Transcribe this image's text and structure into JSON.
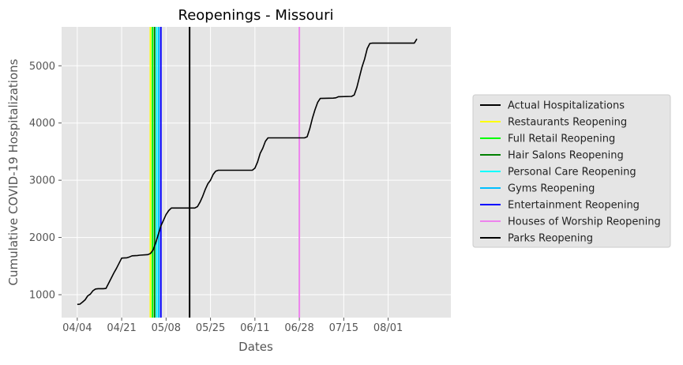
{
  "chart_data": {
    "type": "line",
    "title": "Reopenings - Missouri",
    "xlabel": "Dates",
    "ylabel": "Cumulative COVID-19 Hospitalizations",
    "grid": true,
    "legend_position": "right",
    "x_ticks": [
      {
        "label": "04/04",
        "date": "2020-04-04"
      },
      {
        "label": "04/21",
        "date": "2020-04-21"
      },
      {
        "label": "05/08",
        "date": "2020-05-08"
      },
      {
        "label": "05/25",
        "date": "2020-05-25"
      },
      {
        "label": "06/11",
        "date": "2020-06-11"
      },
      {
        "label": "06/28",
        "date": "2020-06-28"
      },
      {
        "label": "07/15",
        "date": "2020-07-15"
      },
      {
        "label": "08/01",
        "date": "2020-08-01"
      }
    ],
    "xlim": [
      "2020-03-29",
      "2020-08-25"
    ],
    "y_ticks": [
      1000,
      2000,
      3000,
      4000,
      5000
    ],
    "ylim": [
      600,
      5680
    ],
    "series": [
      {
        "name": "Actual Hospitalizations",
        "color": "#000000",
        "points": [
          [
            "2020-04-04",
            830
          ],
          [
            "2020-04-05",
            835
          ],
          [
            "2020-04-06",
            870
          ],
          [
            "2020-04-07",
            910
          ],
          [
            "2020-04-08",
            980
          ],
          [
            "2020-04-09",
            1010
          ],
          [
            "2020-04-10",
            1070
          ],
          [
            "2020-04-11",
            1100
          ],
          [
            "2020-04-12",
            1105
          ],
          [
            "2020-04-14",
            1105
          ],
          [
            "2020-04-15",
            1110
          ],
          [
            "2020-04-16",
            1200
          ],
          [
            "2020-04-17",
            1290
          ],
          [
            "2020-04-18",
            1380
          ],
          [
            "2020-04-19",
            1460
          ],
          [
            "2020-04-20",
            1550
          ],
          [
            "2020-04-21",
            1640
          ],
          [
            "2020-04-23",
            1645
          ],
          [
            "2020-04-24",
            1660
          ],
          [
            "2020-04-25",
            1680
          ],
          [
            "2020-04-27",
            1685
          ],
          [
            "2020-04-28",
            1690
          ],
          [
            "2020-05-01",
            1700
          ],
          [
            "2020-05-02",
            1720
          ],
          [
            "2020-05-03",
            1780
          ],
          [
            "2020-05-04",
            1900
          ],
          [
            "2020-05-05",
            2050
          ],
          [
            "2020-05-06",
            2200
          ],
          [
            "2020-05-07",
            2300
          ],
          [
            "2020-05-08",
            2400
          ],
          [
            "2020-05-09",
            2470
          ],
          [
            "2020-05-10",
            2515
          ],
          [
            "2020-05-19",
            2515
          ],
          [
            "2020-05-20",
            2540
          ],
          [
            "2020-05-21",
            2620
          ],
          [
            "2020-05-22",
            2720
          ],
          [
            "2020-05-23",
            2840
          ],
          [
            "2020-05-24",
            2940
          ],
          [
            "2020-05-25",
            3000
          ],
          [
            "2020-05-26",
            3100
          ],
          [
            "2020-05-27",
            3160
          ],
          [
            "2020-05-28",
            3175
          ],
          [
            "2020-06-10",
            3175
          ],
          [
            "2020-06-11",
            3210
          ],
          [
            "2020-06-12",
            3320
          ],
          [
            "2020-06-13",
            3470
          ],
          [
            "2020-06-14",
            3560
          ],
          [
            "2020-06-15",
            3680
          ],
          [
            "2020-06-16",
            3740
          ],
          [
            "2020-06-30",
            3740
          ],
          [
            "2020-07-01",
            3760
          ],
          [
            "2020-07-02",
            3900
          ],
          [
            "2020-07-03",
            4080
          ],
          [
            "2020-07-04",
            4230
          ],
          [
            "2020-07-05",
            4360
          ],
          [
            "2020-07-06",
            4430
          ],
          [
            "2020-07-11",
            4435
          ],
          [
            "2020-07-12",
            4440
          ],
          [
            "2020-07-13",
            4460
          ],
          [
            "2020-07-18",
            4465
          ],
          [
            "2020-07-19",
            4490
          ],
          [
            "2020-07-20",
            4620
          ],
          [
            "2020-07-21",
            4800
          ],
          [
            "2020-07-22",
            4980
          ],
          [
            "2020-07-23",
            5120
          ],
          [
            "2020-07-24",
            5300
          ],
          [
            "2020-07-25",
            5390
          ],
          [
            "2020-07-26",
            5395
          ],
          [
            "2020-08-11",
            5395
          ],
          [
            "2020-08-12",
            5470
          ]
        ]
      }
    ],
    "reopenings": [
      {
        "name": "Restaurants Reopening",
        "color": "#ffff00",
        "date": "2020-05-04"
      },
      {
        "name": "Full Retail Reopening",
        "color": "#00ff00",
        "date": "2020-05-04"
      },
      {
        "name": "Hair Salons Reopening",
        "color": "#008000",
        "date": "2020-05-04"
      },
      {
        "name": "Personal Care Reopening",
        "color": "#00ffff",
        "date": "2020-05-04"
      },
      {
        "name": "Gyms Reopening",
        "color": "#00bfff",
        "date": "2020-05-04"
      },
      {
        "name": "Entertainment Reopening",
        "color": "#0000ff",
        "date": "2020-05-04"
      },
      {
        "name": "Houses of Worship Reopening",
        "color": "#ee82ee",
        "date": "2020-06-28"
      },
      {
        "name": "Parks Reopening",
        "color": "#000000",
        "date": "2020-05-17"
      }
    ],
    "legend": [
      {
        "label": "Actual Hospitalizations",
        "color": "#000000"
      },
      {
        "label": "Restaurants Reopening",
        "color": "#ffff00"
      },
      {
        "label": "Full Retail Reopening",
        "color": "#00ff00"
      },
      {
        "label": "Hair Salons Reopening",
        "color": "#008000"
      },
      {
        "label": "Personal Care Reopening",
        "color": "#00ffff"
      },
      {
        "label": "Gyms Reopening",
        "color": "#00bfff"
      },
      {
        "label": "Entertainment Reopening",
        "color": "#0000ff"
      },
      {
        "label": "Houses of Worship Reopening",
        "color": "#ee82ee"
      },
      {
        "label": "Parks Reopening",
        "color": "#000000"
      }
    ]
  }
}
